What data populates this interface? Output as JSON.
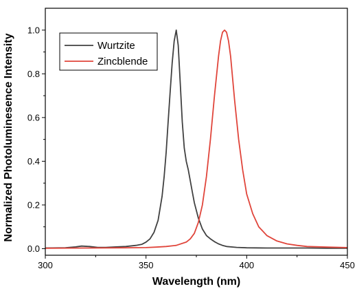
{
  "chart_data": {
    "type": "line",
    "title": "",
    "xlabel": "Wavelength (nm)",
    "ylabel": "Normalized Photoluminesence Intensity",
    "xlim": [
      300,
      450
    ],
    "ylim": [
      -0.03,
      1.1
    ],
    "x_ticks": [
      300,
      350,
      400,
      450
    ],
    "y_ticks": [
      0.0,
      0.2,
      0.4,
      0.6,
      0.8,
      1.0
    ],
    "x_tick_labels": [
      "300",
      "350",
      "400",
      "450"
    ],
    "y_tick_labels": [
      "0.0",
      "0.2",
      "0.4",
      "0.6",
      "0.8",
      "1.0"
    ],
    "grid": false,
    "legend_position": "top-left",
    "series": [
      {
        "name": "Wurtzite",
        "color": "#404040",
        "x": [
          300,
          310,
          315,
          318,
          322,
          326,
          330,
          335,
          340,
          345,
          348,
          350,
          352,
          354,
          356,
          358,
          359,
          360,
          361,
          362,
          363,
          364,
          365,
          366,
          367,
          368,
          369,
          370,
          371,
          372,
          373,
          374,
          376,
          378,
          380,
          382,
          384,
          386,
          388,
          390,
          395,
          400,
          410,
          420,
          430,
          440,
          450
        ],
        "y": [
          0.003,
          0.004,
          0.008,
          0.012,
          0.01,
          0.006,
          0.006,
          0.008,
          0.01,
          0.015,
          0.02,
          0.03,
          0.045,
          0.075,
          0.13,
          0.24,
          0.33,
          0.44,
          0.58,
          0.72,
          0.85,
          0.95,
          1.0,
          0.93,
          0.76,
          0.58,
          0.46,
          0.4,
          0.36,
          0.31,
          0.26,
          0.21,
          0.14,
          0.09,
          0.06,
          0.045,
          0.032,
          0.022,
          0.015,
          0.01,
          0.006,
          0.004,
          0.003,
          0.003,
          0.003,
          0.002,
          0.002
        ]
      },
      {
        "name": "Zincblende",
        "color": "#e0443a",
        "x": [
          300,
          320,
          340,
          350,
          355,
          360,
          365,
          370,
          372,
          374,
          376,
          378,
          380,
          382,
          384,
          386,
          387,
          388,
          389,
          390,
          391,
          392,
          393,
          394,
          396,
          398,
          400,
          403,
          406,
          410,
          415,
          420,
          425,
          430,
          440,
          450
        ],
        "y": [
          0.002,
          0.003,
          0.004,
          0.005,
          0.007,
          0.01,
          0.015,
          0.03,
          0.045,
          0.07,
          0.12,
          0.2,
          0.33,
          0.5,
          0.7,
          0.88,
          0.95,
          0.99,
          1.0,
          0.99,
          0.95,
          0.88,
          0.78,
          0.68,
          0.5,
          0.36,
          0.25,
          0.16,
          0.1,
          0.06,
          0.035,
          0.022,
          0.015,
          0.01,
          0.007,
          0.005
        ]
      }
    ]
  }
}
